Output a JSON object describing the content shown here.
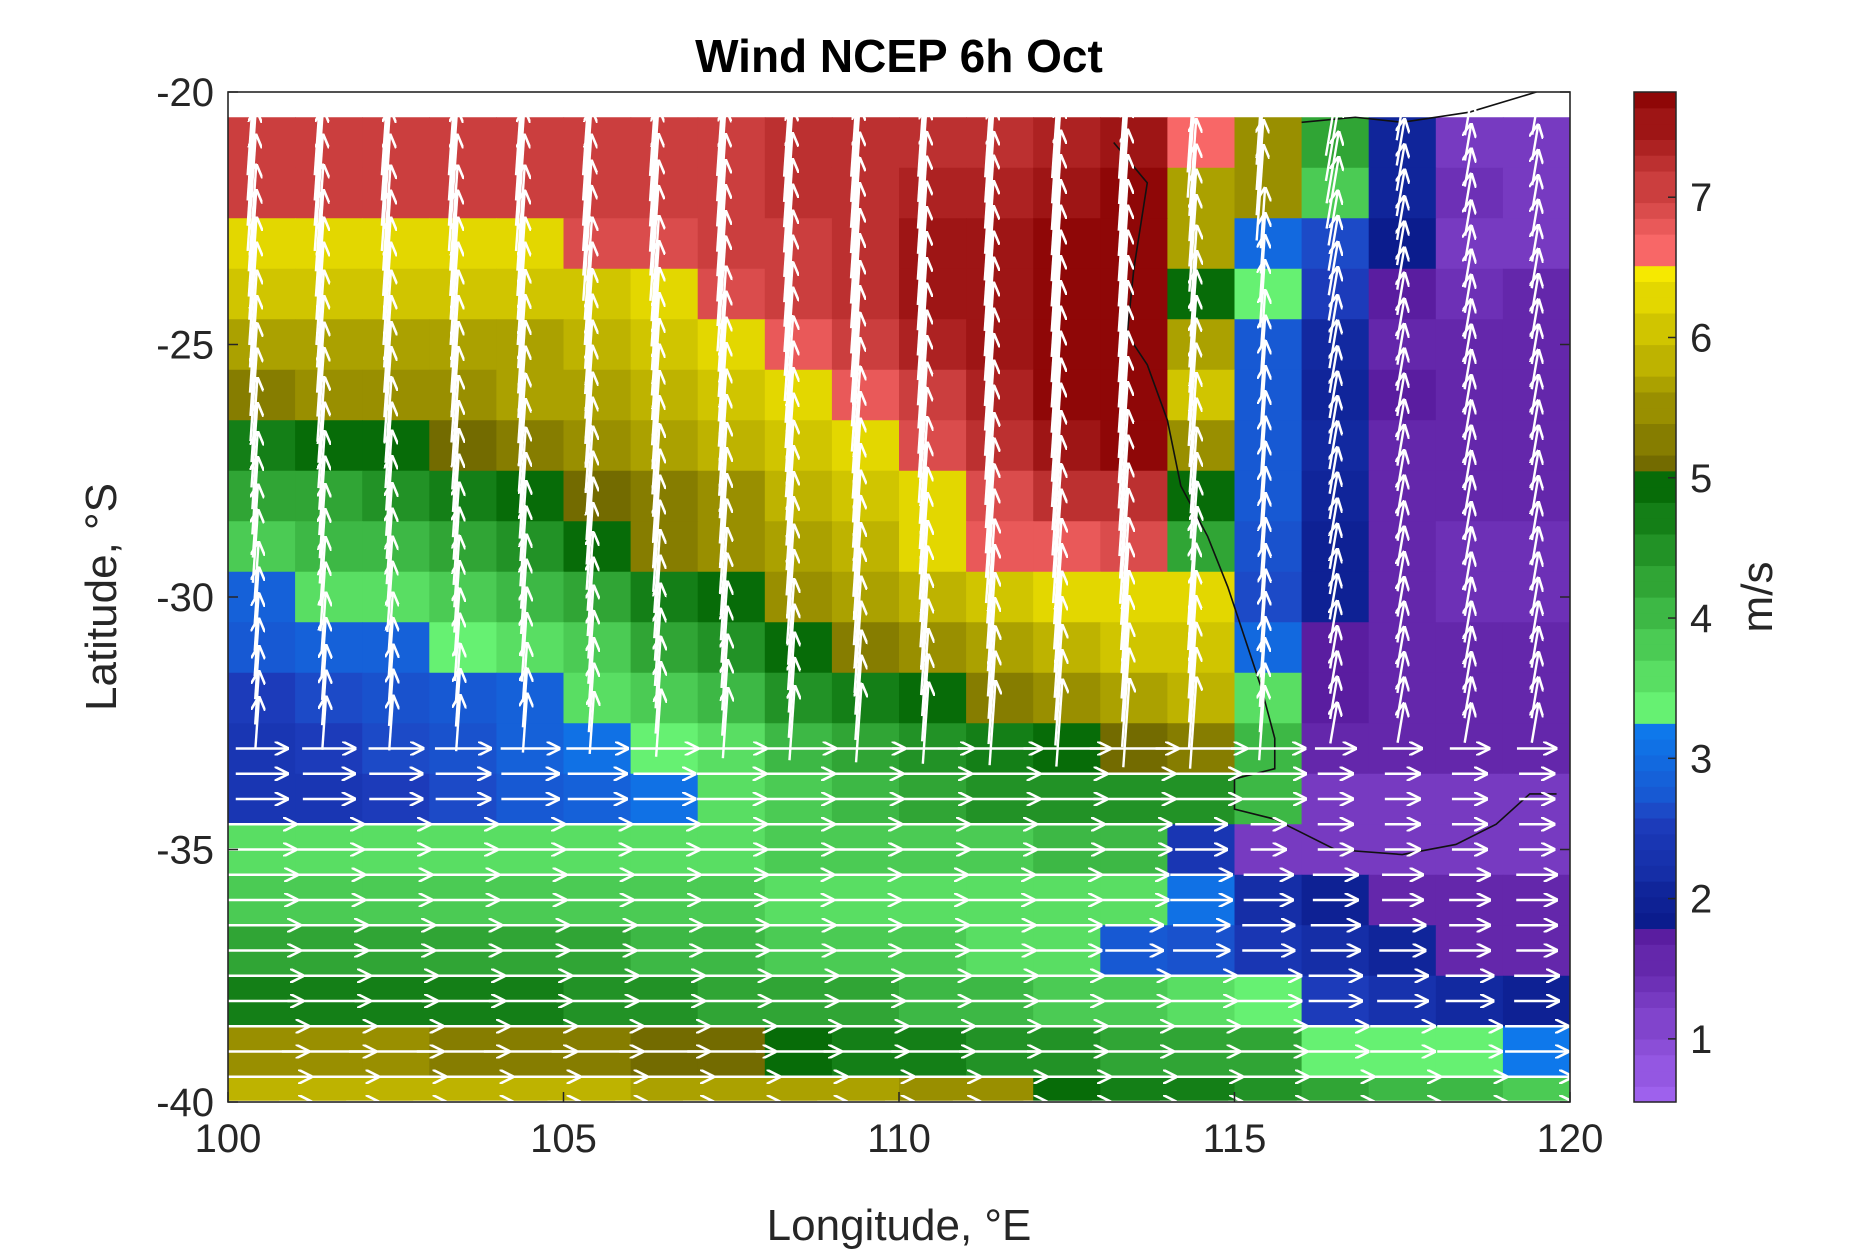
{
  "chart_data": {
    "type": "heatmap",
    "title": "Wind NCEP 6h Oct",
    "xlabel": "Longitude, °E",
    "ylabel": "Latitude, °S",
    "colorbar_label": "m/s",
    "xlim": [
      100,
      120
    ],
    "ylim": [
      -40,
      -20
    ],
    "x_ticks": [
      100,
      105,
      110,
      115,
      120
    ],
    "y_ticks": [
      -20,
      -25,
      -30,
      -35,
      -40
    ],
    "colorbar_ticks": [
      1,
      2,
      3,
      4,
      5,
      6,
      7
    ],
    "colorbar_range": [
      0.55,
      7.75
    ],
    "colorbar_segments": [
      {
        "from": 0.55,
        "to": 1.8,
        "color_low": "#a366f2",
        "color_high": "#55189a"
      },
      {
        "from": 1.8,
        "to": 2.55,
        "color_low": "#0a1a8a",
        "color_high": "#1d3dbd"
      },
      {
        "from": 2.55,
        "to": 3.3,
        "color_low": "#1d46c4",
        "color_high": "#0a84f4"
      },
      {
        "from": 3.3,
        "to": 5.0,
        "color_low": "#6dfa7a",
        "color_high": "#006200"
      },
      {
        "from": 5.0,
        "to": 6.55,
        "color_low": "#6a6200",
        "color_high": "#fff200"
      },
      {
        "from": 6.55,
        "to": 7.75,
        "color_low": "#ff6e6e",
        "color_high": "#870000"
      }
    ],
    "grid": {
      "lon_start": 100.0,
      "lon_step": 1.0,
      "lat_start": -20.5,
      "lat_step": -1.0,
      "n_cols": 20,
      "n_rows": 20
    },
    "speed_ms": [
      [
        7.0,
        7.0,
        7.0,
        7.0,
        7.0,
        7.0,
        7.1,
        7.1,
        7.2,
        7.2,
        7.2,
        7.3,
        7.4,
        7.5,
        6.6,
        5.5,
        4.2,
        2.0,
        1.3,
        1.2
      ],
      [
        7.0,
        7.0,
        7.0,
        7.0,
        7.0,
        7.0,
        7.1,
        7.1,
        7.2,
        7.3,
        7.4,
        7.4,
        7.6,
        7.7,
        5.6,
        5.5,
        3.8,
        2.0,
        1.4,
        1.2
      ],
      [
        6.3,
        6.3,
        6.2,
        6.2,
        6.2,
        6.9,
        6.9,
        7.0,
        7.1,
        7.3,
        7.5,
        7.6,
        7.7,
        7.7,
        5.6,
        3.0,
        2.6,
        1.8,
        1.2,
        1.3
      ],
      [
        6.0,
        6.0,
        6.0,
        6.0,
        6.0,
        6.0,
        6.2,
        6.9,
        7.0,
        7.2,
        7.5,
        7.6,
        7.7,
        7.7,
        4.8,
        3.5,
        2.5,
        1.7,
        1.4,
        1.5
      ],
      [
        5.6,
        5.6,
        5.6,
        5.6,
        5.7,
        5.8,
        6.0,
        6.2,
        6.8,
        7.0,
        7.4,
        7.5,
        7.7,
        7.7,
        5.6,
        2.8,
        2.1,
        1.6,
        1.5,
        1.5
      ],
      [
        5.3,
        5.4,
        5.5,
        5.5,
        5.6,
        5.7,
        5.9,
        6.1,
        6.3,
        6.8,
        7.1,
        7.4,
        7.7,
        7.7,
        6.0,
        2.8,
        2.0,
        1.7,
        1.5,
        1.5
      ],
      [
        4.7,
        4.8,
        4.8,
        5.0,
        5.3,
        5.5,
        5.7,
        5.9,
        6.1,
        6.3,
        6.9,
        7.2,
        7.5,
        7.7,
        5.4,
        2.8,
        2.1,
        1.6,
        1.5,
        1.5
      ],
      [
        4.2,
        4.3,
        4.4,
        4.6,
        4.8,
        5.0,
        5.3,
        5.5,
        5.8,
        6.1,
        6.3,
        6.9,
        7.2,
        7.3,
        4.8,
        2.8,
        2.0,
        1.6,
        1.5,
        1.5
      ],
      [
        3.9,
        4.0,
        4.1,
        4.2,
        4.4,
        4.9,
        5.2,
        5.4,
        5.7,
        5.9,
        6.3,
        6.8,
        6.8,
        6.9,
        4.3,
        2.7,
        1.9,
        1.5,
        1.4,
        1.4
      ],
      [
        2.9,
        3.6,
        3.7,
        3.8,
        4.0,
        4.3,
        4.6,
        4.9,
        5.4,
        5.6,
        5.9,
        6.1,
        6.2,
        6.3,
        6.3,
        2.6,
        1.9,
        1.5,
        1.4,
        1.4
      ],
      [
        2.8,
        2.9,
        2.9,
        3.5,
        3.6,
        3.9,
        4.2,
        4.5,
        4.8,
        5.2,
        5.5,
        5.7,
        5.9,
        6.0,
        6.0,
        3.0,
        1.7,
        1.6,
        1.6,
        1.6
      ],
      [
        2.5,
        2.6,
        2.7,
        2.8,
        2.9,
        3.6,
        3.8,
        4.1,
        4.4,
        4.7,
        4.9,
        5.3,
        5.5,
        5.7,
        5.8,
        3.6,
        1.7,
        1.6,
        1.6,
        1.6
      ],
      [
        2.4,
        2.5,
        2.6,
        2.7,
        2.9,
        3.1,
        3.5,
        3.7,
        4.0,
        4.3,
        4.5,
        4.7,
        4.9,
        5.0,
        5.2,
        4.0,
        1.6,
        1.5,
        1.5,
        1.5
      ],
      [
        2.4,
        2.4,
        2.5,
        2.6,
        2.8,
        2.9,
        3.1,
        3.6,
        3.8,
        4.0,
        4.2,
        4.4,
        4.4,
        4.5,
        4.4,
        4.1,
        1.2,
        1.2,
        1.2,
        1.2
      ],
      [
        3.6,
        3.6,
        3.6,
        3.6,
        3.6,
        3.6,
        3.7,
        3.7,
        3.8,
        3.8,
        3.9,
        3.9,
        4.0,
        4.0,
        2.4,
        1.2,
        1.2,
        1.2,
        1.2,
        1.2
      ],
      [
        3.8,
        3.8,
        3.8,
        3.8,
        3.8,
        3.8,
        3.8,
        3.8,
        3.7,
        3.7,
        3.6,
        3.6,
        3.6,
        3.6,
        3.1,
        2.2,
        1.9,
        1.6,
        1.6,
        1.6
      ],
      [
        4.2,
        4.2,
        4.2,
        4.2,
        4.2,
        4.2,
        4.1,
        4.0,
        3.9,
        3.8,
        3.8,
        3.7,
        3.6,
        2.8,
        2.7,
        2.4,
        2.2,
        2.0,
        1.6,
        1.6
      ],
      [
        4.6,
        4.6,
        4.6,
        4.6,
        4.6,
        4.5,
        4.4,
        4.3,
        4.3,
        4.2,
        4.1,
        4.0,
        3.9,
        3.8,
        3.7,
        3.4,
        2.5,
        2.3,
        2.1,
        1.9
      ],
      [
        5.4,
        5.4,
        5.4,
        5.3,
        5.3,
        5.2,
        5.1,
        5.0,
        4.8,
        4.7,
        4.6,
        4.5,
        4.4,
        4.3,
        4.2,
        4.2,
        3.4,
        3.3,
        3.3,
        3.2
      ],
      [
        5.8,
        5.8,
        5.8,
        5.8,
        5.8,
        5.8,
        5.7,
        5.6,
        5.6,
        5.6,
        5.5,
        5.4,
        4.9,
        4.7,
        4.6,
        4.4,
        4.2,
        4.1,
        4.0,
        3.8
      ]
    ],
    "vector_direction_note": "arrows point toward direction of wind flow",
    "wind_arrows_u_ms_sample_rows": {
      "north_rows_direction": "toward north-north-west",
      "south_rows_direction": "toward east"
    }
  }
}
